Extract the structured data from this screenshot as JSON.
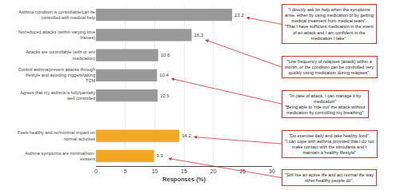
{
  "chart_data": {
    "type": "bar",
    "orientation": "horizontal",
    "categories": [
      "Asthma condition is controllable/can be\ncontrolled with medical help",
      "No/reduced attacks (within varying time\nframes)",
      "Attacks are controllable (with or w/o\nmedication)",
      "Control asthma/prevent attacks through\nlifestyle and avoiding triggers/taking\nTCM",
      "Agrees that my asthma is fully/partially\nwell controlled",
      null,
      "Feels healthy and no/minimal impact on\nnormal activities",
      "Asthma symptoms are minimal/non-\nexistent"
    ],
    "values": [
      23.2,
      16.3,
      10.6,
      10.4,
      10.5,
      null,
      14.2,
      9.9
    ],
    "colors": [
      "#999999",
      "#999999",
      "#999999",
      "#999999",
      "#999999",
      "#ffffff",
      "#f5a623",
      "#f5a623"
    ],
    "xlabel": "Responses (%)",
    "xlim": [
      0,
      30
    ],
    "xticks": [
      0,
      5,
      10,
      15,
      20,
      25,
      30
    ],
    "grid": true,
    "data_labels": true,
    "annotations": [
      {
        "category": "Asthma condition is controllable/can be\ncontrolled with medical help",
        "color": "#cc3333",
        "text": "\"I directly ask for help when the symptoms\narise, either by using medication or by getting\nmedical treatment from medical team\".\n\"That I have sufficient medication in the event\nof an attack and I am confident in the\nmedication I take\"."
      },
      {
        "category": "No/reduced attacks (within varying time\nframes)",
        "color": "#cc3333",
        "text": "\"Low frequency of relapses (attack) within a\nmonth, or the condition can be controlled very\nquickly using medication during relapses\"."
      },
      {
        "category": "Control asthma/prevent attacks through\nlifestyle and avoiding triggers/taking\nTCM",
        "color": "#cc3333",
        "text": "\"In case of attack, I can manage it by\nmedication\"\n\"Being able to 'ride out' the attack without\nmedication by controlling my breathing\""
      },
      {
        "category": "Feels healthy and no/minimal impact on\nnormal activities",
        "color": "#cc3333",
        "text": "\"Do exercise daily and take healthy food\".\n\"I can cope with asthma provided that I do not\nmake contact with the stimulants and I\nmaintain a healthy lifestyle\""
      },
      {
        "category": "Asthma symptoms are minimal/non-\nexistent",
        "color": "#cc3333",
        "text": "\"Still live an active life and act normal the way\nother healthy people do\"."
      }
    ]
  }
}
